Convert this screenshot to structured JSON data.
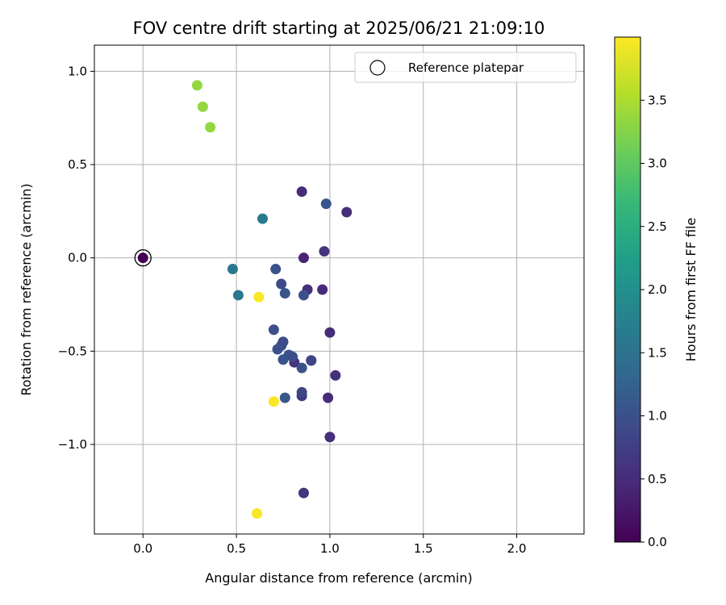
{
  "chart_data": {
    "type": "scatter",
    "title": "FOV centre drift starting at 2025/06/21 21:09:10",
    "xlabel": "Angular distance from reference (arcmin)",
    "ylabel": "Rotation from reference (arcmin)",
    "xlim": [
      -0.26,
      2.36
    ],
    "ylim": [
      -1.48,
      1.14
    ],
    "x_ticks": [
      0.0,
      0.5,
      1.0,
      1.5,
      2.0
    ],
    "y_ticks": [
      -1.0,
      -0.5,
      0.0,
      0.5,
      1.0
    ],
    "x_tick_labels": [
      "0.0",
      "0.5",
      "1.0",
      "1.5",
      "2.0"
    ],
    "y_tick_labels": [
      "−1.0",
      "−0.5",
      "0.0",
      "0.5",
      "1.0"
    ],
    "grid": true,
    "legend": {
      "position": "top-right",
      "label": "Reference platepar",
      "marker": "open-circle"
    },
    "colorbar": {
      "label": "Hours from first FF file",
      "range": [
        0.0,
        4.0
      ],
      "ticks": [
        0.0,
        0.5,
        1.0,
        1.5,
        2.0,
        2.5,
        3.0,
        3.5
      ],
      "tick_labels": [
        "0.0",
        "0.5",
        "1.0",
        "1.5",
        "2.0",
        "2.5",
        "3.0",
        "3.5"
      ],
      "colormap": [
        "#440154",
        "#482878",
        "#3e4989",
        "#31688e",
        "#26828e",
        "#1f9e89",
        "#35b779",
        "#6ece58",
        "#b5de2b",
        "#fde725"
      ]
    },
    "reference_point": {
      "x": 0.0,
      "y": 0.0
    },
    "points": [
      {
        "x": 0.0,
        "y": 0.0,
        "hours": 0.0
      },
      {
        "x": 0.86,
        "y": 0.0,
        "hours": 0.4
      },
      {
        "x": 0.85,
        "y": 0.355,
        "hours": 0.5
      },
      {
        "x": 1.09,
        "y": 0.245,
        "hours": 0.55
      },
      {
        "x": 0.97,
        "y": 0.035,
        "hours": 0.6
      },
      {
        "x": 0.88,
        "y": -0.17,
        "hours": 0.55
      },
      {
        "x": 0.96,
        "y": -0.17,
        "hours": 0.5
      },
      {
        "x": 1.0,
        "y": -0.4,
        "hours": 0.5
      },
      {
        "x": 1.03,
        "y": -0.63,
        "hours": 0.55
      },
      {
        "x": 0.9,
        "y": -0.55,
        "hours": 0.6
      },
      {
        "x": 0.81,
        "y": -0.56,
        "hours": 0.6
      },
      {
        "x": 0.85,
        "y": -0.74,
        "hours": 0.65
      },
      {
        "x": 0.99,
        "y": -0.75,
        "hours": 0.5
      },
      {
        "x": 1.0,
        "y": -0.96,
        "hours": 0.55
      },
      {
        "x": 0.86,
        "y": -1.26,
        "hours": 0.6
      },
      {
        "x": 0.98,
        "y": 0.29,
        "hours": 1.05
      },
      {
        "x": 0.71,
        "y": -0.06,
        "hours": 1.0
      },
      {
        "x": 0.74,
        "y": -0.14,
        "hours": 0.9
      },
      {
        "x": 0.76,
        "y": -0.19,
        "hours": 1.05
      },
      {
        "x": 0.86,
        "y": -0.2,
        "hours": 1.0
      },
      {
        "x": 0.7,
        "y": -0.385,
        "hours": 1.0
      },
      {
        "x": 0.75,
        "y": -0.45,
        "hours": 0.95
      },
      {
        "x": 0.74,
        "y": -0.47,
        "hours": 0.9
      },
      {
        "x": 0.72,
        "y": -0.49,
        "hours": 1.0
      },
      {
        "x": 0.78,
        "y": -0.52,
        "hours": 1.0
      },
      {
        "x": 0.8,
        "y": -0.53,
        "hours": 0.95
      },
      {
        "x": 0.75,
        "y": -0.545,
        "hours": 1.05
      },
      {
        "x": 0.9,
        "y": -0.55,
        "hours": 0.85
      },
      {
        "x": 0.85,
        "y": -0.59,
        "hours": 1.0
      },
      {
        "x": 0.85,
        "y": -0.72,
        "hours": 0.85
      },
      {
        "x": 0.76,
        "y": -0.75,
        "hours": 1.1
      },
      {
        "x": 0.64,
        "y": 0.21,
        "hours": 1.65
      },
      {
        "x": 0.48,
        "y": -0.06,
        "hours": 1.6
      },
      {
        "x": 0.51,
        "y": -0.2,
        "hours": 1.6
      },
      {
        "x": 0.29,
        "y": 0.925,
        "hours": 3.35
      },
      {
        "x": 0.32,
        "y": 0.81,
        "hours": 3.35
      },
      {
        "x": 0.36,
        "y": 0.7,
        "hours": 3.35
      },
      {
        "x": 0.62,
        "y": -0.21,
        "hours": 3.98
      },
      {
        "x": 0.7,
        "y": -0.77,
        "hours": 3.98
      },
      {
        "x": 0.61,
        "y": -1.37,
        "hours": 3.98
      }
    ]
  }
}
